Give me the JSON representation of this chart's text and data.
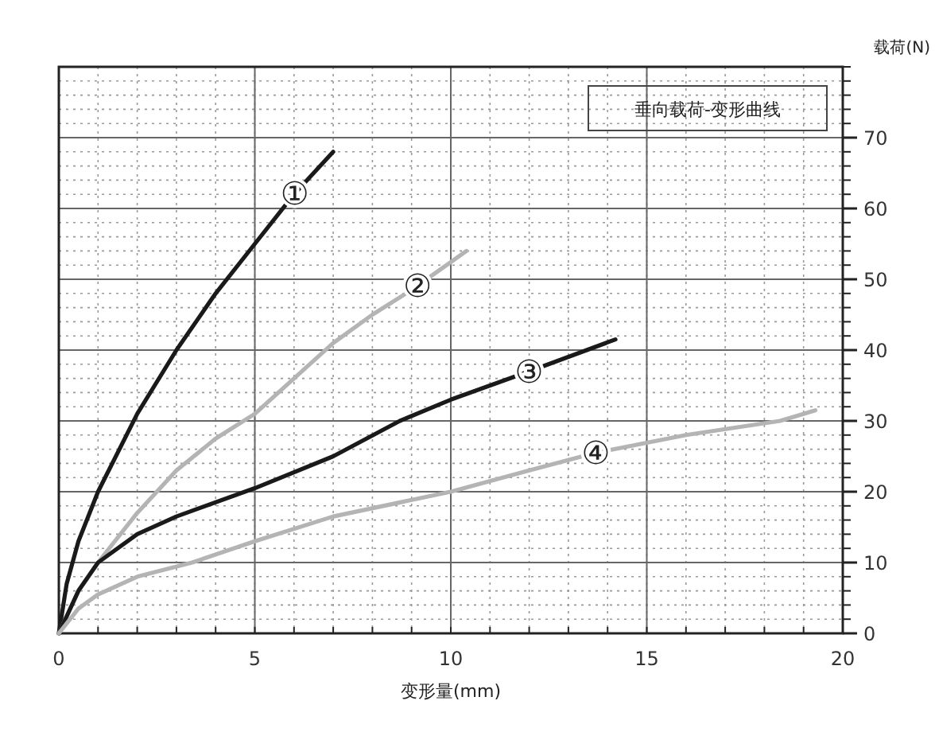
{
  "chart_data": {
    "type": "line",
    "title": "垂向载荷-变形曲线",
    "xlabel": "变形量(mm)",
    "ylabel": "载荷(N)",
    "xlim": [
      0,
      20
    ],
    "xticks": [
      0,
      5,
      10,
      15,
      20
    ],
    "ylim": [
      0,
      80
    ],
    "yticks": [
      0,
      10,
      20,
      30,
      40,
      50,
      60,
      70
    ],
    "grid": true,
    "line_style": "solid",
    "marker": "none",
    "series": [
      {
        "name": "①",
        "color": "#1a1a1a",
        "x": [
          0,
          0.2,
          0.5,
          1,
          2,
          3,
          4,
          5,
          6,
          7
        ],
        "values": [
          0,
          7,
          13,
          20,
          31,
          40,
          48,
          55,
          62,
          68
        ]
      },
      {
        "name": "②",
        "color": "#b4b4b4",
        "x": [
          0,
          0.5,
          1,
          2,
          3,
          4,
          5,
          6,
          7,
          8,
          9,
          10.4
        ],
        "values": [
          0,
          6,
          10,
          17,
          23,
          27.5,
          31,
          36,
          41,
          45,
          48.5,
          54
        ]
      },
      {
        "name": "③",
        "color": "#1a1a1a",
        "x": [
          0,
          0.5,
          1,
          2,
          3,
          5,
          7,
          8.7,
          10,
          12,
          14.2
        ],
        "values": [
          0,
          6,
          10,
          14,
          16.5,
          20.5,
          25,
          30,
          33,
          37,
          41.5
        ]
      },
      {
        "name": "④",
        "color": "#b4b4b4",
        "x": [
          0,
          0.5,
          1,
          2,
          3.4,
          5,
          7,
          10,
          12,
          13.7,
          16,
          18.4,
          19.3
        ],
        "values": [
          0,
          3.5,
          5.5,
          8,
          10,
          13,
          16.5,
          20,
          23,
          25.5,
          28,
          30,
          31.5
        ]
      }
    ]
  }
}
